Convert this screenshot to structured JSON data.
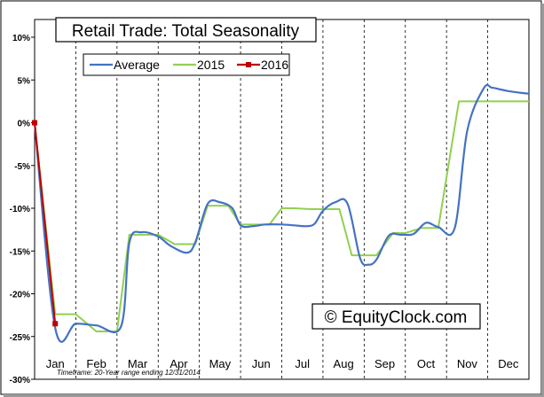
{
  "chart_data": {
    "type": "line",
    "title": "Retail Trade: Total Seasonality",
    "watermark": "© EquityClock.com",
    "footnote": "Timeframe: 20-Year range ending 12/31/2014",
    "categories": [
      "Jan",
      "Feb",
      "Mar",
      "Apr",
      "May",
      "Jun",
      "Jul",
      "Aug",
      "Sep",
      "Oct",
      "Nov",
      "Dec"
    ],
    "yticks": [
      "10%",
      "5%",
      "0%",
      "-5%",
      "-10%",
      "-15%",
      "-20%",
      "-25%",
      "-30%"
    ],
    "ylim": [
      -30,
      10
    ],
    "xlim": [
      0,
      12
    ],
    "grid": "vertical dashed at month boundaries",
    "legend_position": "top-left",
    "series": [
      {
        "name": "Average",
        "color": "#4472c4",
        "smooth": true,
        "x": [
          0,
          0.5,
          1.0,
          1.5,
          2.1,
          2.3,
          2.6,
          3.0,
          3.3,
          3.7,
          3.9,
          4.2,
          4.5,
          4.8,
          5.0,
          5.3,
          5.6,
          6.0,
          6.3,
          6.6,
          6.8,
          7.0,
          7.3,
          7.6,
          7.9,
          8.1,
          8.3,
          8.6,
          8.9,
          9.2,
          9.5,
          9.8,
          10.2,
          10.5,
          10.9,
          11.1,
          11.3,
          11.5,
          11.8,
          12.0
        ],
        "y": [
          0,
          -24,
          -23.5,
          -23.7,
          -23.8,
          -14,
          -12.8,
          -13.3,
          -14.4,
          -15.2,
          -14,
          -9.5,
          -9.3,
          -10,
          -12,
          -12.1,
          -11.9,
          -11.9,
          -12,
          -12.1,
          -11.8,
          -10.3,
          -9.3,
          -9.5,
          -15.8,
          -16.6,
          -16,
          -13.2,
          -13.1,
          -13,
          -11.7,
          -12.2,
          -12.3,
          -1,
          4,
          4.1,
          3.9,
          3.7,
          3.5,
          3.4
        ]
      },
      {
        "name": "2015",
        "color": "#92d050",
        "smooth": false,
        "x": [
          0,
          0.5,
          1.0,
          1.5,
          2.0,
          2.3,
          2.7,
          3.0,
          3.4,
          3.9,
          4.2,
          4.7,
          5.0,
          5.4,
          5.7,
          6.0,
          6.3,
          6.7,
          7.0,
          7.4,
          7.7,
          8.0,
          8.3,
          8.7,
          9.0,
          9.4,
          9.8,
          10.3,
          10.5,
          10.9,
          12.0
        ],
        "y": [
          0,
          -22.4,
          -22.4,
          -24.4,
          -24.4,
          -13.1,
          -13.1,
          -13.1,
          -14.2,
          -14.2,
          -9.7,
          -9.7,
          -11.9,
          -11.9,
          -11.9,
          -10,
          -10,
          -10.1,
          -10.1,
          -10.1,
          -15.5,
          -15.5,
          -15.5,
          -12.9,
          -12.9,
          -12.3,
          -12.3,
          2.5,
          2.5,
          2.5,
          2.5
        ]
      },
      {
        "name": "2016",
        "color": "#c00000",
        "smooth": false,
        "x": [
          0,
          0.5
        ],
        "y": [
          0,
          -23.5
        ]
      }
    ]
  }
}
